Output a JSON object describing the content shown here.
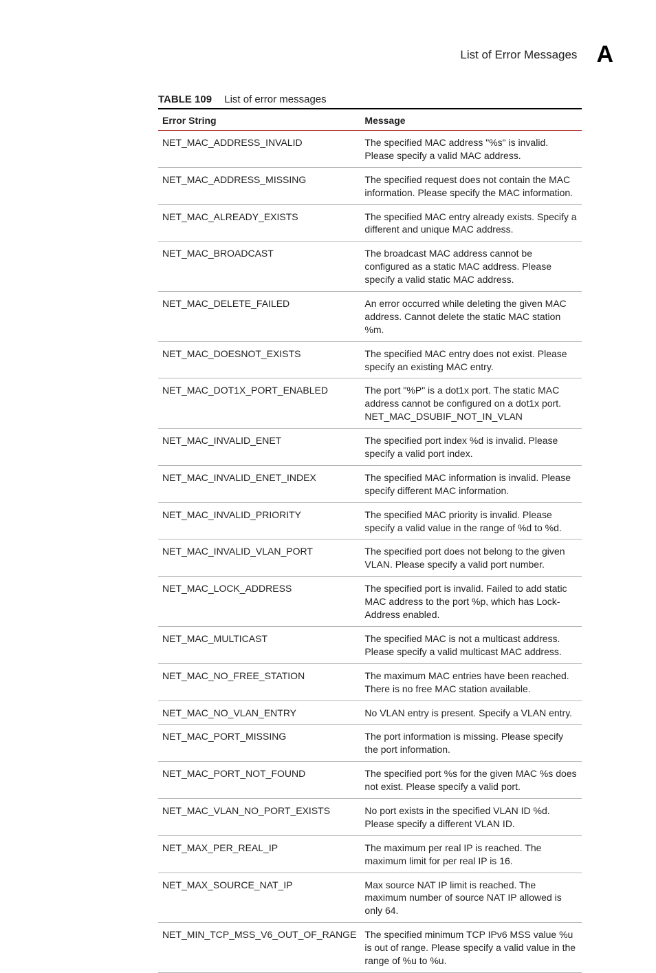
{
  "header": {
    "title": "List of Error Messages",
    "appendix_letter": "A"
  },
  "table": {
    "number_label": "TABLE 109",
    "caption": "List of error messages",
    "columns": [
      "Error String",
      "Message"
    ],
    "rows": [
      {
        "error": "NET_MAC_ADDRESS_INVALID",
        "message": "The specified MAC address \"%s\" is invalid.  Please specify a valid MAC address."
      },
      {
        "error": "NET_MAC_ADDRESS_MISSING",
        "message": "The specified request does not contain the MAC information.  Please specify the MAC information."
      },
      {
        "error": "NET_MAC_ALREADY_EXISTS",
        "message": "The specified MAC entry already exists.  Specify a different and unique MAC address."
      },
      {
        "error": "NET_MAC_BROADCAST",
        "message": "The broadcast MAC address cannot be configured as a static MAC address.  Please specify a valid static MAC address."
      },
      {
        "error": "NET_MAC_DELETE_FAILED",
        "message": "An error occurred while deleting the given MAC address. Cannot delete the static MAC station %m."
      },
      {
        "error": "NET_MAC_DOESNOT_EXISTS",
        "message": "The specified MAC entry does not exist.  Please specify an existing MAC entry."
      },
      {
        "error": "NET_MAC_DOT1X_PORT_ENABLED",
        "message": "The port \"%P\" is a dot1x port. The static MAC address cannot be configured on a dot1x port. NET_MAC_DSUBIF_NOT_IN_VLAN"
      },
      {
        "error": "NET_MAC_INVALID_ENET",
        "message": "The specified port index %d is invalid.  Please specify a valid port index."
      },
      {
        "error": "NET_MAC_INVALID_ENET_INDEX",
        "message": "The specified MAC information is invalid.  Please specify different MAC information."
      },
      {
        "error": "NET_MAC_INVALID_PRIORITY",
        "message": "The specified MAC priority is invalid. Please specify a valid value in the range of %d to %d."
      },
      {
        "error": "NET_MAC_INVALID_VLAN_PORT",
        "message": "The specified port does not belong to the given VLAN.  Please specify a valid port number."
      },
      {
        "error": "NET_MAC_LOCK_ADDRESS",
        "message": "The specified port is invalid.  Failed to add static MAC address to the port %p, which has Lock-Address enabled."
      },
      {
        "error": "NET_MAC_MULTICAST",
        "message": "The specified MAC is not a multicast address.  Please specify a valid multicast MAC address."
      },
      {
        "error": "NET_MAC_NO_FREE_STATION",
        "message": "The maximum MAC entries have been reached.  There is no free MAC station available."
      },
      {
        "error": "NET_MAC_NO_VLAN_ENTRY",
        "message": "No VLAN entry is present.  Specify a VLAN entry."
      },
      {
        "error": "NET_MAC_PORT_MISSING",
        "message": "The port information is missing.  Please specify the port information."
      },
      {
        "error": "NET_MAC_PORT_NOT_FOUND",
        "message": "The specified port %s for the given MAC %s does not exist.  Please specify a valid port."
      },
      {
        "error": "NET_MAC_VLAN_NO_PORT_EXISTS",
        "message": "No port exists in the specified VLAN ID %d.  Please specify a different VLAN ID."
      },
      {
        "error": "NET_MAX_PER_REAL_IP",
        "message": "The maximum per real IP is reached.  The maximum limit for per real IP is 16."
      },
      {
        "error": "NET_MAX_SOURCE_NAT_IP",
        "message": "Max source NAT IP limit is reached.  The maximum number of source NAT IP allowed is only 64."
      },
      {
        "error": "NET_MIN_TCP_MSS_V6_OUT_OF_RANGE",
        "message": "The specified minimum TCP IPv6 MSS value %u is out of range.  Please specify a valid value in the range of %u to %u."
      }
    ]
  }
}
